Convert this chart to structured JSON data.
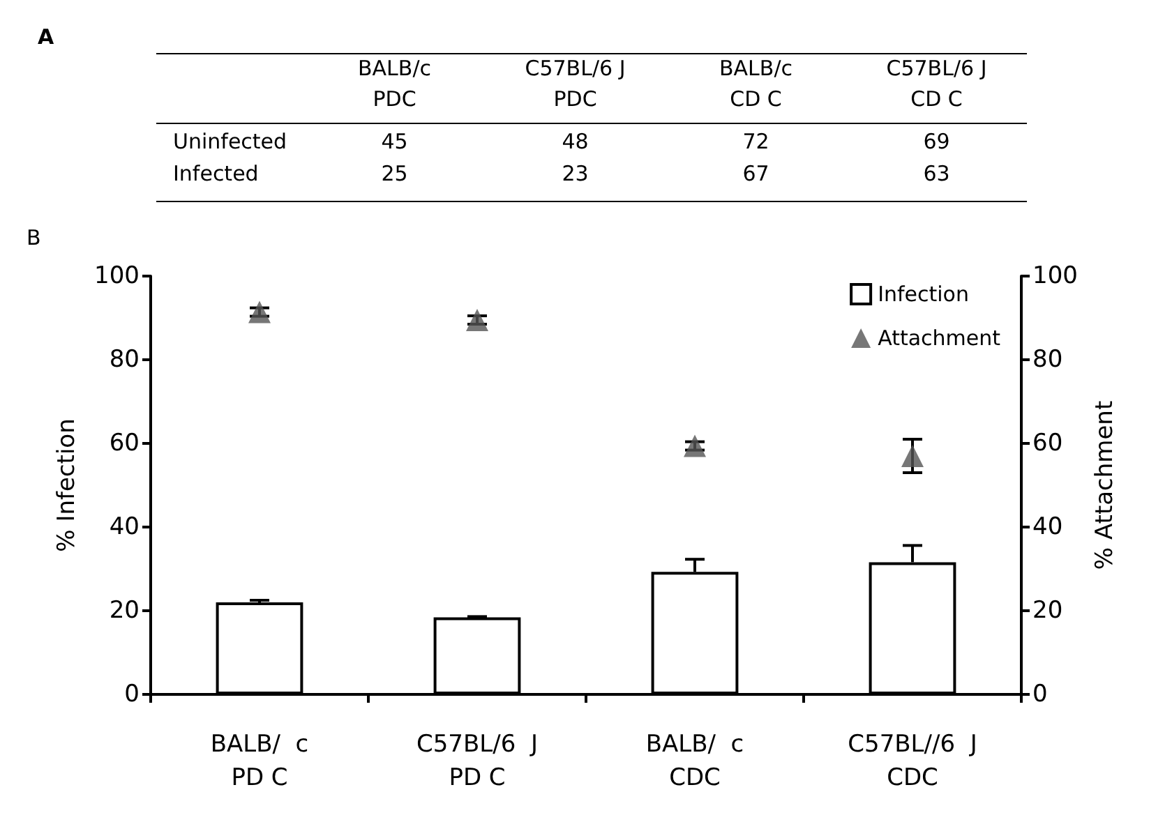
{
  "chart_data": [
    {
      "type": "heatmap",
      "title": "A",
      "data_labels": true,
      "categories": [
        "BALB/c\nPDC",
        "C57BL/6 J\nPDC",
        "BALB/c\nCD C",
        "C57BL/6 J\nCD C"
      ],
      "y_categories": [
        "Uninfected",
        "Infected"
      ],
      "cells": [
        [
          45,
          48,
          72,
          69
        ],
        [
          25,
          23,
          67,
          63
        ]
      ]
    },
    {
      "type": "bar",
      "title": "B",
      "categories": [
        "BALB/  c\nPD C",
        "C57BL/6  J\nPD C",
        "BALB/  c\nCDC",
        "C57BL//6  J\nCDC"
      ],
      "ylabel": "% Infection",
      "y2label": "% Attachment",
      "ylim": [
        0,
        100
      ],
      "yticks": [
        0,
        20,
        40,
        60,
        80,
        100
      ],
      "y2lim": [
        0,
        100
      ],
      "y2ticks": [
        0,
        20,
        40,
        60,
        80,
        100
      ],
      "legend": "top right",
      "grid": false,
      "series": [
        {
          "name": "Infection",
          "type": "bar",
          "color": "#ffffff",
          "values": [
            22,
            18.4,
            29.3,
            31.6
          ],
          "errors": [
            0.5,
            0.2,
            3,
            4
          ]
        },
        {
          "name": "Attachment",
          "type": "scatter",
          "axis": "y2",
          "marker": "triangle",
          "color": "#555555",
          "values": [
            91.4,
            89.5,
            59.4,
            57
          ],
          "errors": [
            1,
            1,
            1,
            4
          ]
        }
      ]
    }
  ]
}
